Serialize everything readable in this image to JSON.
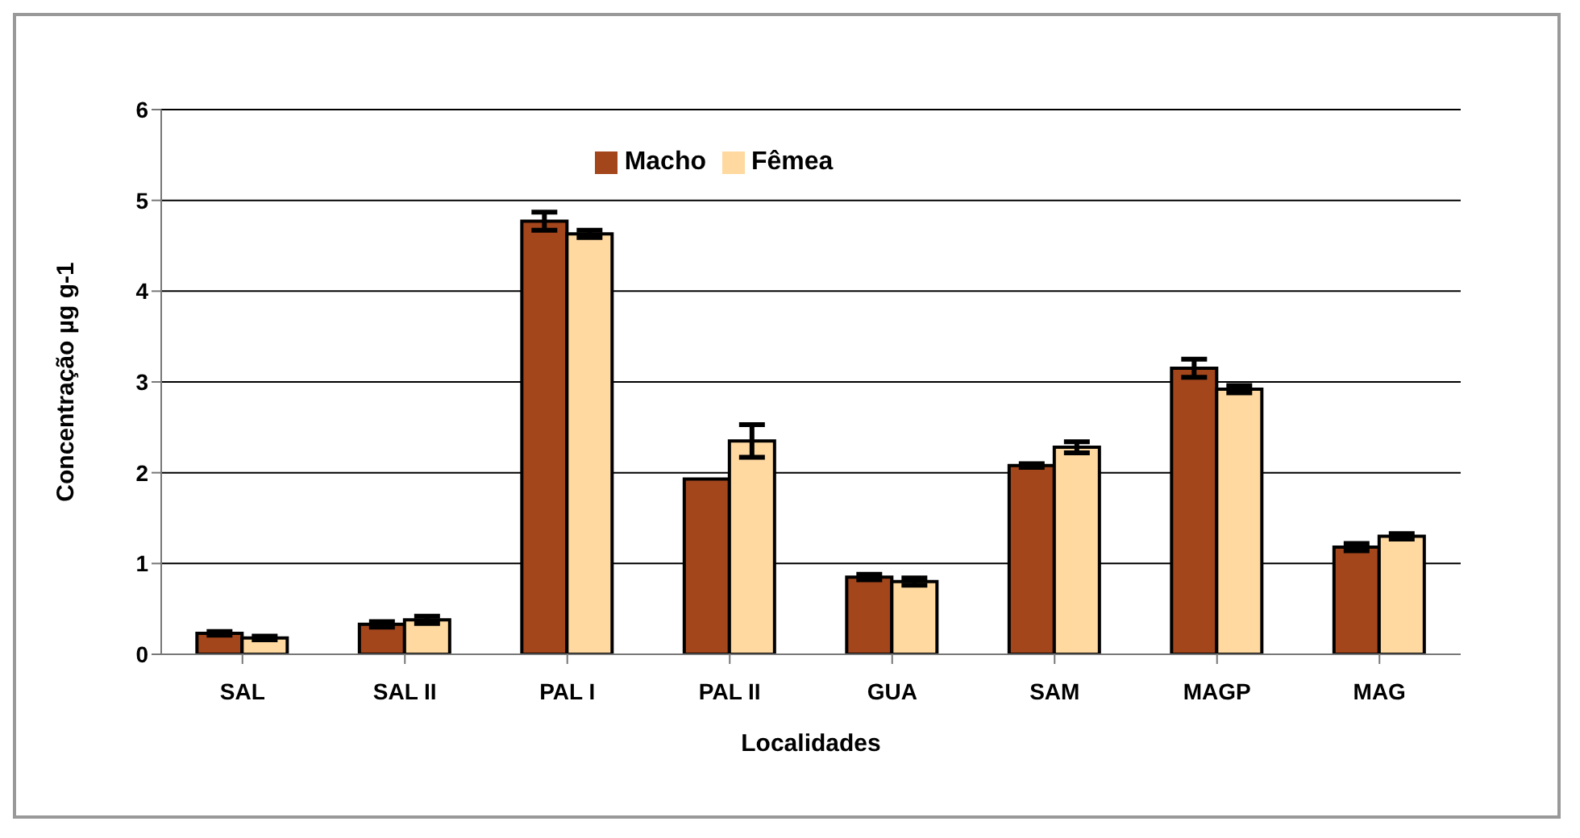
{
  "chart_data": {
    "type": "bar",
    "xlabel": "Localidades",
    "ylabel": "Concentração  µg g-1",
    "categories": [
      "SAL",
      "SAL II",
      "PAL I",
      "PAL II",
      "GUA",
      "SAM",
      "MAGP",
      "MAG"
    ],
    "series": [
      {
        "name": "Macho",
        "color": "#a3461c",
        "values": [
          0.23,
          0.33,
          4.77,
          1.93,
          0.85,
          2.08,
          3.15,
          1.18
        ],
        "errors": [
          0.02,
          0.03,
          0.1,
          null,
          0.03,
          0.02,
          0.1,
          0.04
        ]
      },
      {
        "name": "Fêmea",
        "color": "#ffd9a0",
        "values": [
          0.18,
          0.38,
          4.63,
          2.35,
          0.8,
          2.28,
          2.92,
          1.3
        ],
        "errors": [
          0.02,
          0.04,
          0.04,
          0.18,
          0.04,
          0.06,
          0.04,
          0.03
        ]
      }
    ],
    "ylim": [
      0,
      6
    ],
    "yticks": [
      0,
      1,
      2,
      3,
      4,
      5,
      6
    ],
    "grid": "y",
    "legend": "top"
  }
}
